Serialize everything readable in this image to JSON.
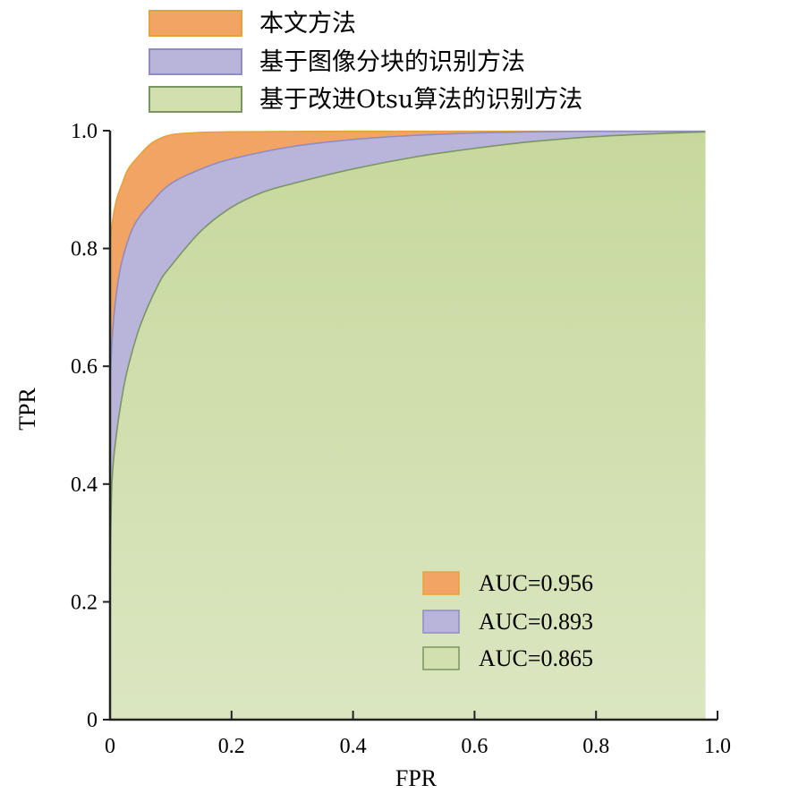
{
  "chart_data": {
    "type": "area",
    "xlabel": "FPR",
    "ylabel": "TPR",
    "xlim": [
      0,
      1.0
    ],
    "ylim": [
      0,
      1.0
    ],
    "x_ticks": [
      "0",
      "0.2",
      "0.4",
      "0.6",
      "0.8",
      "1.0"
    ],
    "y_ticks": [
      "0",
      "0.2",
      "0.4",
      "0.6",
      "0.8",
      "1.0"
    ],
    "grid": false,
    "legend_position": "top",
    "series": [
      {
        "name": "本文方法",
        "auc_label": "AUC=0.956",
        "color": "#f2a464",
        "border": "#e7a13a",
        "x": [
          0,
          0.002,
          0.01,
          0.02,
          0.03,
          0.05,
          0.07,
          0.1,
          0.15,
          0.2,
          0.4,
          0.6,
          0.8,
          0.98
        ],
        "y": [
          0.79,
          0.83,
          0.88,
          0.91,
          0.935,
          0.96,
          0.98,
          0.993,
          0.997,
          0.998,
          0.999,
          0.999,
          0.999,
          0.999
        ]
      },
      {
        "name": "基于图像分块的识别方法",
        "auc_label": "AUC=0.893",
        "color": "#b9b4da",
        "border": "#8f8cc4",
        "x": [
          0,
          0.003,
          0.01,
          0.02,
          0.04,
          0.07,
          0.1,
          0.15,
          0.2,
          0.3,
          0.4,
          0.5,
          0.6,
          0.7,
          0.8,
          0.98
        ],
        "y": [
          0.56,
          0.64,
          0.72,
          0.78,
          0.84,
          0.88,
          0.91,
          0.935,
          0.952,
          0.973,
          0.985,
          0.992,
          0.996,
          0.998,
          0.999,
          0.999
        ]
      },
      {
        "name": "基于改进Otsu算法的识别方法",
        "auc_label": "AUC=0.865",
        "color": "#d2e0ad",
        "border": "#7a9560",
        "x": [
          0,
          0.003,
          0.01,
          0.02,
          0.03,
          0.05,
          0.08,
          0.1,
          0.15,
          0.2,
          0.25,
          0.3,
          0.4,
          0.5,
          0.6,
          0.7,
          0.8,
          0.9,
          0.98
        ],
        "y": [
          0.24,
          0.4,
          0.48,
          0.55,
          0.6,
          0.67,
          0.74,
          0.77,
          0.83,
          0.87,
          0.895,
          0.91,
          0.935,
          0.955,
          0.97,
          0.982,
          0.99,
          0.995,
          0.998
        ]
      }
    ]
  }
}
